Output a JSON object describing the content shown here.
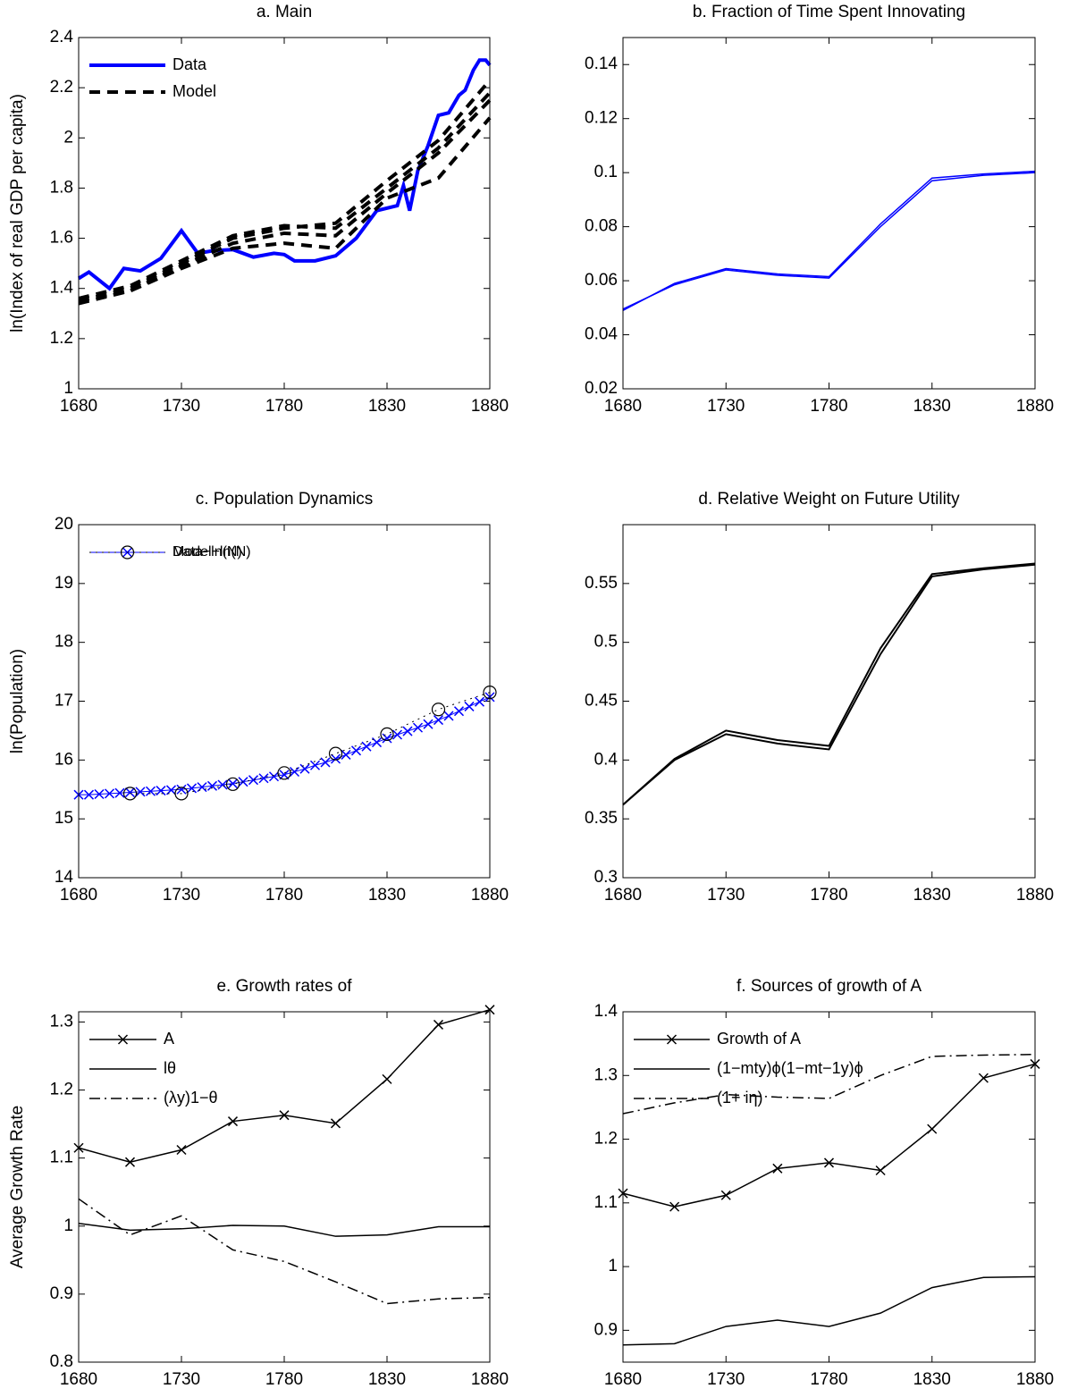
{
  "chart_data": [
    {
      "type": "line",
      "title": "a. Main",
      "ylabel": "ln(Index of real GDP per capita)",
      "xlim": [
        1680,
        1880
      ],
      "xticks": [
        1680,
        1730,
        1780,
        1830,
        1880
      ],
      "ylim": [
        1,
        2.4
      ],
      "yticks": [
        1,
        1.2,
        1.4,
        1.6,
        1.8,
        2,
        2.2,
        2.4
      ],
      "legend": "upper left",
      "series": [
        {
          "name": "Data",
          "color": "#0000ff",
          "dash": "solid",
          "width": 4,
          "x": [
            1680,
            1685,
            1695,
            1702,
            1710,
            1720,
            1730,
            1738,
            1745,
            1755,
            1765,
            1775,
            1780,
            1785,
            1795,
            1805,
            1815,
            1825,
            1835,
            1838,
            1841,
            1845,
            1850,
            1855,
            1860,
            1865,
            1868,
            1872,
            1875,
            1878,
            1880
          ],
          "values": [
            1.44,
            1.465,
            1.4,
            1.48,
            1.47,
            1.52,
            1.63,
            1.54,
            1.55,
            1.555,
            1.525,
            1.54,
            1.535,
            1.51,
            1.51,
            1.53,
            1.6,
            1.71,
            1.73,
            1.81,
            1.71,
            1.87,
            1.97,
            2.09,
            2.1,
            2.17,
            2.19,
            2.27,
            2.31,
            2.31,
            2.29
          ]
        },
        {
          "name": "Model",
          "color": "#000000",
          "dash": "dashed",
          "width": 4,
          "x": [
            1680,
            1705,
            1730,
            1755,
            1780,
            1805,
            1830,
            1855,
            1880
          ],
          "lines": [
            [
              1.35,
              1.4,
              1.5,
              1.6,
              1.64,
              1.66,
              1.83,
              1.99,
              2.23
            ],
            [
              1.34,
              1.39,
              1.49,
              1.58,
              1.62,
              1.61,
              1.78,
              1.94,
              2.15
            ],
            [
              1.35,
              1.39,
              1.48,
              1.56,
              1.58,
              1.56,
              1.76,
              1.84,
              2.08
            ],
            [
              1.36,
              1.41,
              1.51,
              1.61,
              1.65,
              1.64,
              1.8,
              1.96,
              2.18
            ]
          ]
        }
      ]
    },
    {
      "type": "line",
      "title": "b. Fraction of Time Spent Innovating",
      "xlim": [
        1680,
        1880
      ],
      "xticks": [
        1680,
        1730,
        1780,
        1830,
        1880
      ],
      "ylim": [
        0.02,
        0.15
      ],
      "yticks": [
        0.02,
        0.04,
        0.06,
        0.08,
        0.1,
        0.12,
        0.14
      ],
      "x": [
        1680,
        1705,
        1730,
        1755,
        1780,
        1805,
        1830,
        1855,
        1880
      ],
      "series": [
        {
          "color": "#0000ff",
          "dash": "solid",
          "width": 1.5,
          "values": [
            0.049,
            0.059,
            0.0645,
            0.0625,
            0.0615,
            0.081,
            0.098,
            0.0995,
            0.1005
          ]
        },
        {
          "color": "#0000ff",
          "dash": "solid",
          "width": 1.5,
          "values": [
            0.0495,
            0.0585,
            0.064,
            0.062,
            0.061,
            0.08,
            0.097,
            0.099,
            0.1
          ]
        }
      ]
    },
    {
      "type": "line",
      "title": "c. Population Dynamics",
      "ylabel": "ln(Population)",
      "xlim": [
        1680,
        1880
      ],
      "xticks": [
        1680,
        1730,
        1780,
        1830,
        1880
      ],
      "ylim": [
        14,
        20
      ],
      "yticks": [
        14,
        15,
        16,
        17,
        18,
        19,
        20
      ],
      "legend": "upper left",
      "series": [
        {
          "name": "Data−ln(N)",
          "color": "#0000ff",
          "dash": "solid",
          "width": 1,
          "marker": "x",
          "x": [
            1680,
            1685,
            1690,
            1695,
            1700,
            1705,
            1710,
            1715,
            1720,
            1725,
            1730,
            1735,
            1740,
            1745,
            1750,
            1755,
            1760,
            1765,
            1770,
            1775,
            1780,
            1785,
            1790,
            1795,
            1800,
            1805,
            1810,
            1815,
            1820,
            1825,
            1830,
            1835,
            1840,
            1845,
            1850,
            1855,
            1860,
            1865,
            1870,
            1875,
            1880
          ],
          "values": [
            15.41,
            15.41,
            15.42,
            15.43,
            15.44,
            15.45,
            15.46,
            15.47,
            15.48,
            15.49,
            15.5,
            15.52,
            15.54,
            15.56,
            15.58,
            15.6,
            15.63,
            15.66,
            15.69,
            15.72,
            15.75,
            15.8,
            15.85,
            15.91,
            15.96,
            16.02,
            16.09,
            16.16,
            16.23,
            16.3,
            16.37,
            16.43,
            16.49,
            16.55,
            16.61,
            16.68,
            16.75,
            16.83,
            16.91,
            16.99,
            17.07
          ]
        },
        {
          "name": "Model−ln(N)",
          "color": "#000000",
          "dash": "dotted",
          "width": 1,
          "marker": "o",
          "x": [
            1705,
            1730,
            1755,
            1780,
            1805,
            1830,
            1855,
            1880
          ],
          "values": [
            15.43,
            15.43,
            15.59,
            15.78,
            16.11,
            16.44,
            16.86,
            17.15
          ]
        }
      ]
    },
    {
      "type": "line",
      "title": "d. Relative Weight on Future Utility",
      "xlim": [
        1680,
        1880
      ],
      "xticks": [
        1680,
        1730,
        1780,
        1830,
        1880
      ],
      "ylim": [
        0.3,
        0.6
      ],
      "yticks": [
        0.3,
        0.35,
        0.4,
        0.45,
        0.5,
        0.55
      ],
      "x": [
        1680,
        1705,
        1730,
        1755,
        1780,
        1805,
        1830,
        1855,
        1880
      ],
      "series": [
        {
          "color": "#000000",
          "dash": "solid",
          "width": 2,
          "values": [
            0.362,
            0.401,
            0.425,
            0.417,
            0.412,
            0.495,
            0.558,
            0.563,
            0.567
          ]
        },
        {
          "color": "#000000",
          "dash": "solid",
          "width": 2,
          "values": [
            0.362,
            0.4,
            0.422,
            0.414,
            0.409,
            0.49,
            0.556,
            0.562,
            0.566
          ]
        }
      ]
    },
    {
      "type": "line",
      "title": "e. Growth rates of",
      "ylabel": "Average Growth Rate",
      "xlim": [
        1680,
        1880
      ],
      "xticks": [
        1680,
        1730,
        1780,
        1830,
        1880
      ],
      "ylim": [
        0.8,
        1.315
      ],
      "yticks": [
        0.8,
        0.9,
        1,
        1.1,
        1.2,
        1.3
      ],
      "legend": "upper left",
      "x": [
        1680,
        1705,
        1730,
        1755,
        1780,
        1805,
        1830,
        1855,
        1880
      ],
      "series": [
        {
          "name": "A",
          "color": "#000000",
          "dash": "solid",
          "width": 1.5,
          "marker": "x",
          "values": [
            1.115,
            1.094,
            1.112,
            1.154,
            1.163,
            1.151,
            1.216,
            1.296,
            1.318
          ]
        },
        {
          "name": "lθ",
          "color": "#000000",
          "dash": "solid",
          "width": 1.5,
          "values": [
            1.004,
            0.994,
            0.996,
            1.001,
            1.0,
            0.985,
            0.987,
            0.999,
            0.999
          ]
        },
        {
          "name": "(λy)1−θ",
          "color": "#000000",
          "dash": "dashdot",
          "width": 1.5,
          "values": [
            1.04,
            0.987,
            1.015,
            0.965,
            0.948,
            0.918,
            0.886,
            0.893,
            0.895
          ]
        }
      ]
    },
    {
      "type": "line",
      "title": "f. Sources of growth of A",
      "xlim": [
        1680,
        1880
      ],
      "xticks": [
        1680,
        1730,
        1780,
        1830,
        1880
      ],
      "ylim": [
        0.85,
        1.4
      ],
      "yticks": [
        0.9,
        1,
        1.1,
        1.2,
        1.3,
        1.4
      ],
      "legend": "upper left",
      "x": [
        1680,
        1705,
        1730,
        1755,
        1780,
        1805,
        1830,
        1855,
        1880
      ],
      "series": [
        {
          "name": "Growth of A",
          "color": "#000000",
          "dash": "solid",
          "width": 1.5,
          "marker": "x",
          "values": [
            1.115,
            1.094,
            1.112,
            1.154,
            1.163,
            1.151,
            1.216,
            1.296,
            1.318
          ]
        },
        {
          "name": "(1−mty)ϕ(1−mt−1y)ϕ",
          "color": "#000000",
          "dash": "solid",
          "width": 1.5,
          "values": [
            0.877,
            0.879,
            0.906,
            0.916,
            0.906,
            0.927,
            0.967,
            0.983,
            0.984
          ]
        },
        {
          "name": "(1+ iη)",
          "color": "#000000",
          "dash": "dashdot",
          "width": 1.5,
          "values": [
            1.24,
            1.257,
            1.27,
            1.266,
            1.264,
            1.3,
            1.33,
            1.332,
            1.333
          ]
        }
      ]
    }
  ]
}
